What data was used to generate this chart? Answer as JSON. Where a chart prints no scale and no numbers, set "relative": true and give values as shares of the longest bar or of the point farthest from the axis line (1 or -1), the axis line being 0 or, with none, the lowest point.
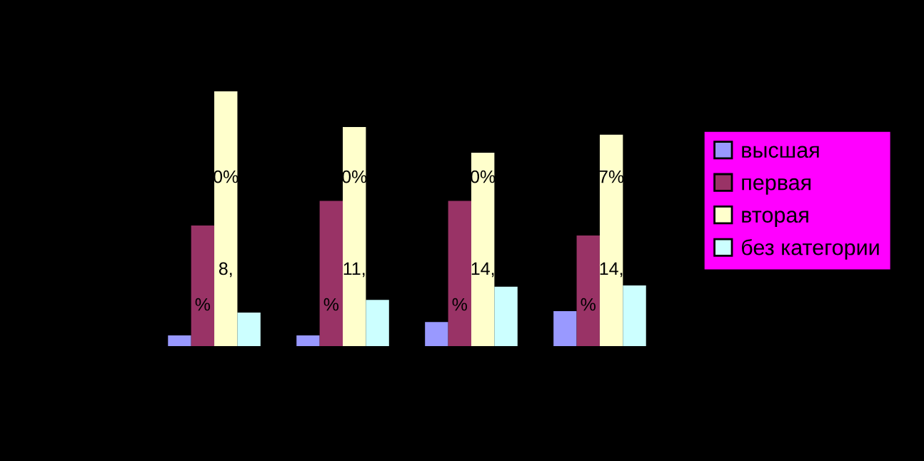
{
  "chart_data": {
    "type": "bar",
    "relative": true,
    "categories": [
      null,
      null,
      null,
      null
    ],
    "series": [
      {
        "name": "высшая",
        "color": "#9999ff",
        "values": [
          0.045,
          0.045,
          0.097,
          0.14
        ]
      },
      {
        "name": "первая",
        "color": "#993366",
        "values": [
          0.475,
          0.571,
          0.571,
          0.436
        ]
      },
      {
        "name": "вторая",
        "color": "#ffffcc",
        "values": [
          1.0,
          0.86,
          0.76,
          0.83
        ]
      },
      {
        "name": "без категории",
        "color": "#ccffff",
        "values": [
          0.134,
          0.184,
          0.235,
          0.24
        ]
      }
    ],
    "annotations": [
      "0%",
      "%",
      "8,",
      "0%",
      "%",
      "11,",
      "0%",
      "%",
      "14,",
      "7%",
      "%",
      "14,"
    ],
    "legend": "right",
    "grid": false
  }
}
